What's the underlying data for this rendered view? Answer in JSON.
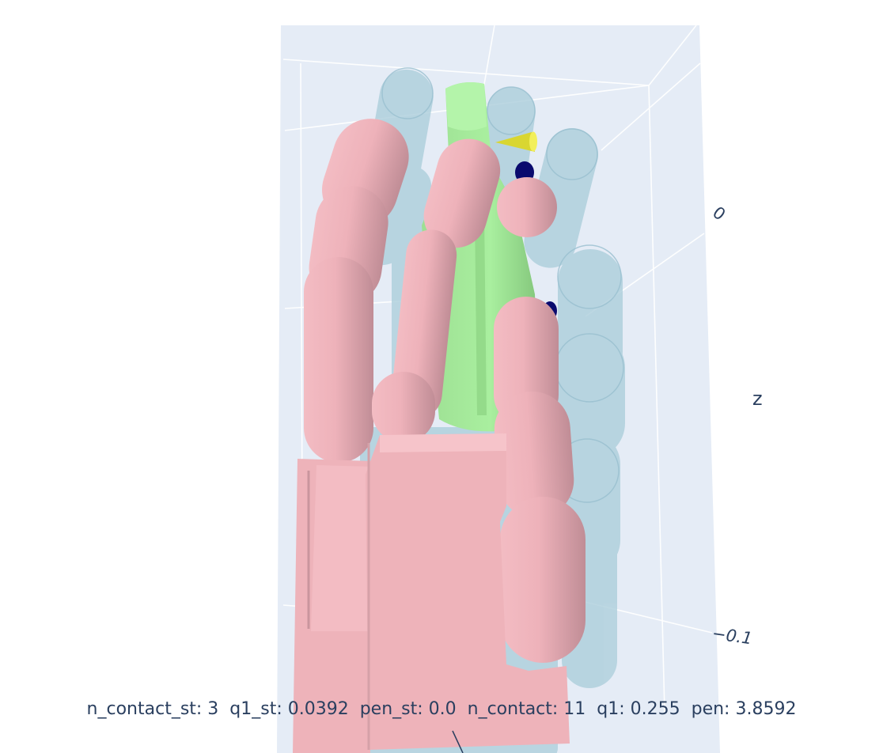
{
  "scene": {
    "axis_title_z": "z",
    "z_ticks": [
      "0",
      "−0.1"
    ],
    "colors": {
      "background": "#e5ecf6",
      "grid": "#ffffff",
      "hand_pink": "#f0b5bc",
      "hand_pink_shadow": "#c38f98",
      "ghost_blue": "#aecfdc",
      "object_green": "#a6ec9c",
      "object_green_shadow": "#7cc174",
      "cone_yellow": "#e8e43a",
      "contact_navy": "#0a0a6e",
      "text": "#2a3f5f"
    }
  },
  "status": {
    "text": "n_contact_st: 3  q1_st: 0.0392  pen_st: 0.0  n_contact: 11  q1: 0.255  pen: 3.8592"
  }
}
